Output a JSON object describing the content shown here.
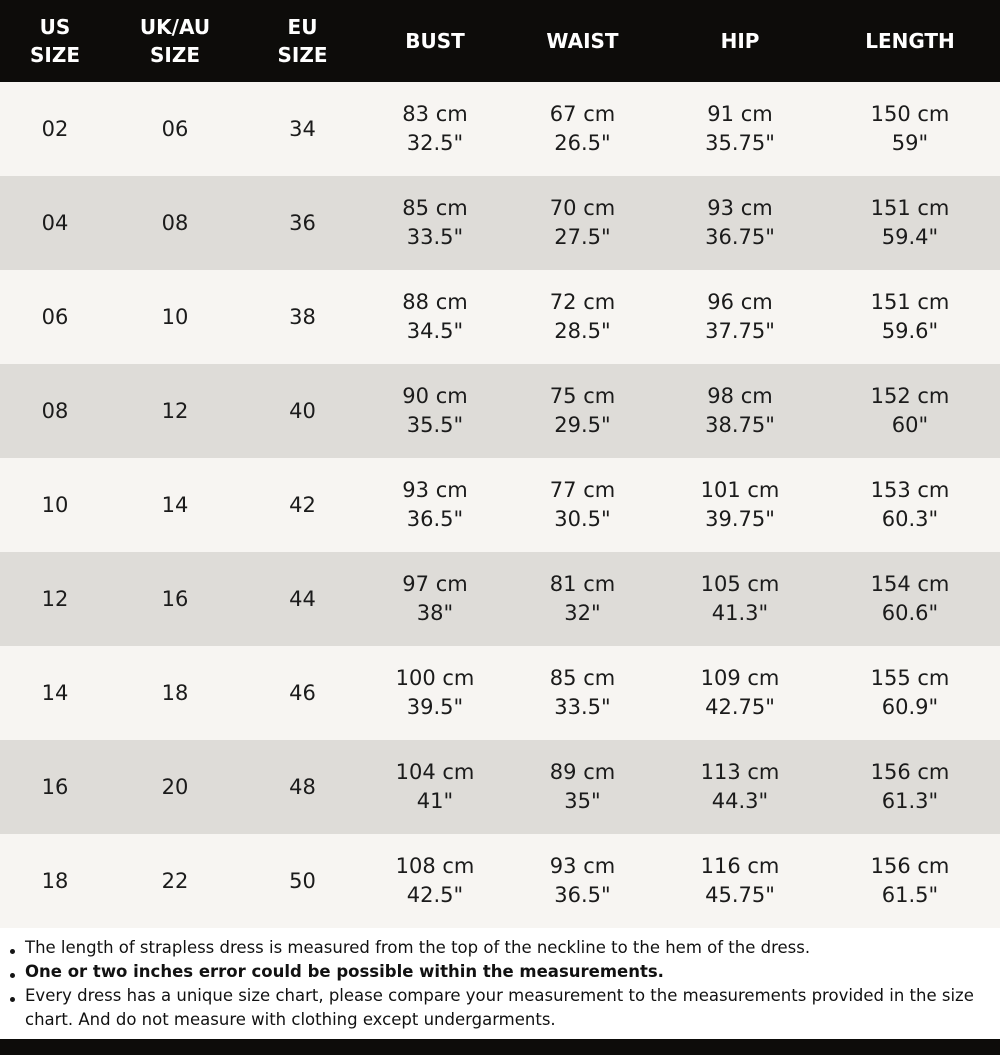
{
  "chart_data": {
    "type": "table",
    "columns": [
      [
        "US",
        "SIZE"
      ],
      [
        "UK/AU",
        "SIZE"
      ],
      [
        "EU",
        "SIZE"
      ],
      [
        "BUST"
      ],
      [
        "WAIST"
      ],
      [
        "HIP"
      ],
      [
        "LENGTH"
      ]
    ],
    "rows": [
      [
        [
          "02"
        ],
        [
          "06"
        ],
        [
          "34"
        ],
        [
          "83 cm",
          "32.5\""
        ],
        [
          "67 cm",
          "26.5\""
        ],
        [
          "91 cm",
          "35.75\""
        ],
        [
          "150 cm",
          "59\""
        ]
      ],
      [
        [
          "04"
        ],
        [
          "08"
        ],
        [
          "36"
        ],
        [
          "85 cm",
          "33.5\""
        ],
        [
          "70 cm",
          "27.5\""
        ],
        [
          "93 cm",
          "36.75\""
        ],
        [
          "151 cm",
          "59.4\""
        ]
      ],
      [
        [
          "06"
        ],
        [
          "10"
        ],
        [
          "38"
        ],
        [
          "88 cm",
          "34.5\""
        ],
        [
          "72 cm",
          "28.5\""
        ],
        [
          "96 cm",
          "37.75\""
        ],
        [
          "151 cm",
          "59.6\""
        ]
      ],
      [
        [
          "08"
        ],
        [
          "12"
        ],
        [
          "40"
        ],
        [
          "90 cm",
          "35.5\""
        ],
        [
          "75 cm",
          "29.5\""
        ],
        [
          "98 cm",
          "38.75\""
        ],
        [
          "152 cm",
          "60\""
        ]
      ],
      [
        [
          "10"
        ],
        [
          "14"
        ],
        [
          "42"
        ],
        [
          "93 cm",
          "36.5\""
        ],
        [
          "77 cm",
          "30.5\""
        ],
        [
          "101 cm",
          "39.75\""
        ],
        [
          "153 cm",
          "60.3\""
        ]
      ],
      [
        [
          "12"
        ],
        [
          "16"
        ],
        [
          "44"
        ],
        [
          "97 cm",
          "38\""
        ],
        [
          "81 cm",
          "32\""
        ],
        [
          "105 cm",
          "41.3\""
        ],
        [
          "154 cm",
          "60.6\""
        ]
      ],
      [
        [
          "14"
        ],
        [
          "18"
        ],
        [
          "46"
        ],
        [
          "100 cm",
          "39.5\""
        ],
        [
          "85 cm",
          "33.5\""
        ],
        [
          "109 cm",
          "42.75\""
        ],
        [
          "155 cm",
          "60.9\""
        ]
      ],
      [
        [
          "16"
        ],
        [
          "20"
        ],
        [
          "48"
        ],
        [
          "104 cm",
          "41\""
        ],
        [
          "89 cm",
          "35\""
        ],
        [
          "113 cm",
          "44.3\""
        ],
        [
          "156 cm",
          "61.3\""
        ]
      ],
      [
        [
          "18"
        ],
        [
          "22"
        ],
        [
          "50"
        ],
        [
          "108 cm",
          "42.5\""
        ],
        [
          "93 cm",
          "36.5\""
        ],
        [
          "116 cm",
          "45.75\""
        ],
        [
          "156 cm",
          "61.5\""
        ]
      ]
    ]
  },
  "notes": [
    {
      "text": "The length of strapless dress is measured from the top of the neckline to the hem of the dress.",
      "bold": false
    },
    {
      "text": "One or two inches error could be possible within the measurements.",
      "bold": true
    },
    {
      "text": "Every dress has a unique size chart, please compare your measurement to the measurements provided in the size chart. And do not measure with clothing except undergarments.",
      "bold": false
    }
  ]
}
